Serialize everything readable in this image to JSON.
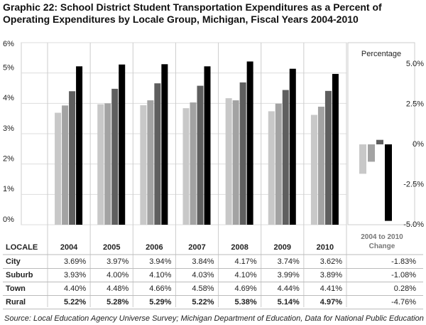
{
  "chart_data": {
    "type": "bar",
    "title": "Graphic 22: School District Student Transportation Expenditures as a Percent of Operating Expenditures by Locale Group, Michigan, Fiscal Years 2004-2010",
    "table_header": "LOCALE",
    "categories": [
      "2004",
      "2005",
      "2006",
      "2007",
      "2008",
      "2009",
      "2010"
    ],
    "series": [
      {
        "name": "City",
        "color": "#c8c8c8",
        "values": [
          3.69,
          3.97,
          3.94,
          3.84,
          4.17,
          3.74,
          3.62
        ],
        "value_labels": [
          "3.69%",
          "3.97%",
          "3.94%",
          "3.84%",
          "4.17%",
          "3.74%",
          "3.62%"
        ],
        "change": -1.83,
        "change_label": "-1.83%"
      },
      {
        "name": "Suburb",
        "color": "#a3a3a3",
        "values": [
          3.93,
          4.0,
          4.1,
          4.03,
          4.1,
          3.99,
          3.89
        ],
        "value_labels": [
          "3.93%",
          "4.00%",
          "4.10%",
          "4.03%",
          "4.10%",
          "3.99%",
          "3.89%"
        ],
        "change": -1.08,
        "change_label": "-1.08%"
      },
      {
        "name": "Town",
        "color": "#5f5f5f",
        "values": [
          4.4,
          4.48,
          4.66,
          4.58,
          4.69,
          4.44,
          4.41
        ],
        "value_labels": [
          "4.40%",
          "4.48%",
          "4.66%",
          "4.58%",
          "4.69%",
          "4.44%",
          "4.41%"
        ],
        "change": 0.28,
        "change_label": "0.28%"
      },
      {
        "name": "Rural",
        "color": "#000000",
        "values": [
          5.22,
          5.28,
          5.29,
          5.22,
          5.38,
          5.14,
          4.97
        ],
        "value_labels": [
          "5.22%",
          "5.28%",
          "5.29%",
          "5.22%",
          "5.38%",
          "5.14%",
          "4.97%"
        ],
        "change": -4.76,
        "change_label": "-4.76%"
      }
    ],
    "ylim": [
      0,
      6
    ],
    "yticks": [
      {
        "value": 0,
        "label": "0%"
      },
      {
        "value": 1,
        "label": "1%"
      },
      {
        "value": 2,
        "label": "2%"
      },
      {
        "value": 3,
        "label": "3%"
      },
      {
        "value": 4,
        "label": "4%"
      },
      {
        "value": 5,
        "label": "5%"
      },
      {
        "value": 6,
        "label": "6%"
      }
    ],
    "y2_title": "Percentage",
    "change_header": "2004 to 2010 Change",
    "y2lim": [
      -5,
      5
    ],
    "y2ticks": [
      {
        "value": 5,
        "label": "5.0%"
      },
      {
        "value": 2.5,
        "label": "2.5%"
      },
      {
        "value": 0,
        "label": "0%"
      },
      {
        "value": -2.5,
        "label": "-2.5%"
      },
      {
        "value": -5,
        "label": "-5.0%"
      }
    ],
    "grid": true,
    "source": "Source: Local Education Agency Universe Survey; Michigan Department of Education, Data for National Public Education Financial Survey"
  }
}
